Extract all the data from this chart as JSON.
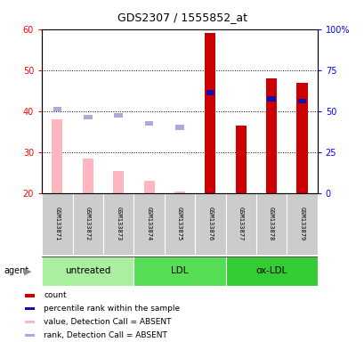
{
  "title": "GDS2307 / 1555852_at",
  "samples": [
    "GSM133871",
    "GSM133872",
    "GSM133873",
    "GSM133874",
    "GSM133875",
    "GSM133876",
    "GSM133877",
    "GSM133878",
    "GSM133879"
  ],
  "group_spans": [
    [
      0,
      2,
      "untreated",
      "#AAEEA0"
    ],
    [
      3,
      5,
      "LDL",
      "#55DD55"
    ],
    [
      6,
      8,
      "ox-LDL",
      "#33CC33"
    ]
  ],
  "bar_red_values": [
    38,
    28.5,
    25.5,
    23,
    20.5,
    59,
    36.5,
    48,
    47
  ],
  "bar_red_absent": [
    true,
    true,
    true,
    true,
    true,
    false,
    false,
    false,
    false
  ],
  "rank_values": [
    40.5,
    38.5,
    39,
    37,
    36,
    44.5,
    null,
    43,
    42.5
  ],
  "rank_absent": [
    true,
    true,
    true,
    true,
    true,
    false,
    null,
    false,
    false
  ],
  "ylim_left": [
    20,
    60
  ],
  "ylim_right": [
    0,
    100
  ],
  "yticks_left": [
    20,
    30,
    40,
    50,
    60
  ],
  "yticks_right": [
    0,
    25,
    50,
    75,
    100
  ],
  "ytick_labels_right": [
    "0",
    "25",
    "50",
    "75",
    "100%"
  ],
  "color_red_present": "#CC0000",
  "color_red_absent": "#FFB6C1",
  "color_blue_present": "#1111AA",
  "color_blue_absent": "#AAAADD",
  "legend_items": [
    {
      "color": "#CC0000",
      "label": "count"
    },
    {
      "color": "#1111AA",
      "label": "percentile rank within the sample"
    },
    {
      "color": "#FFB6C1",
      "label": "value, Detection Call = ABSENT"
    },
    {
      "color": "#AAAADD",
      "label": "rank, Detection Call = ABSENT"
    }
  ]
}
